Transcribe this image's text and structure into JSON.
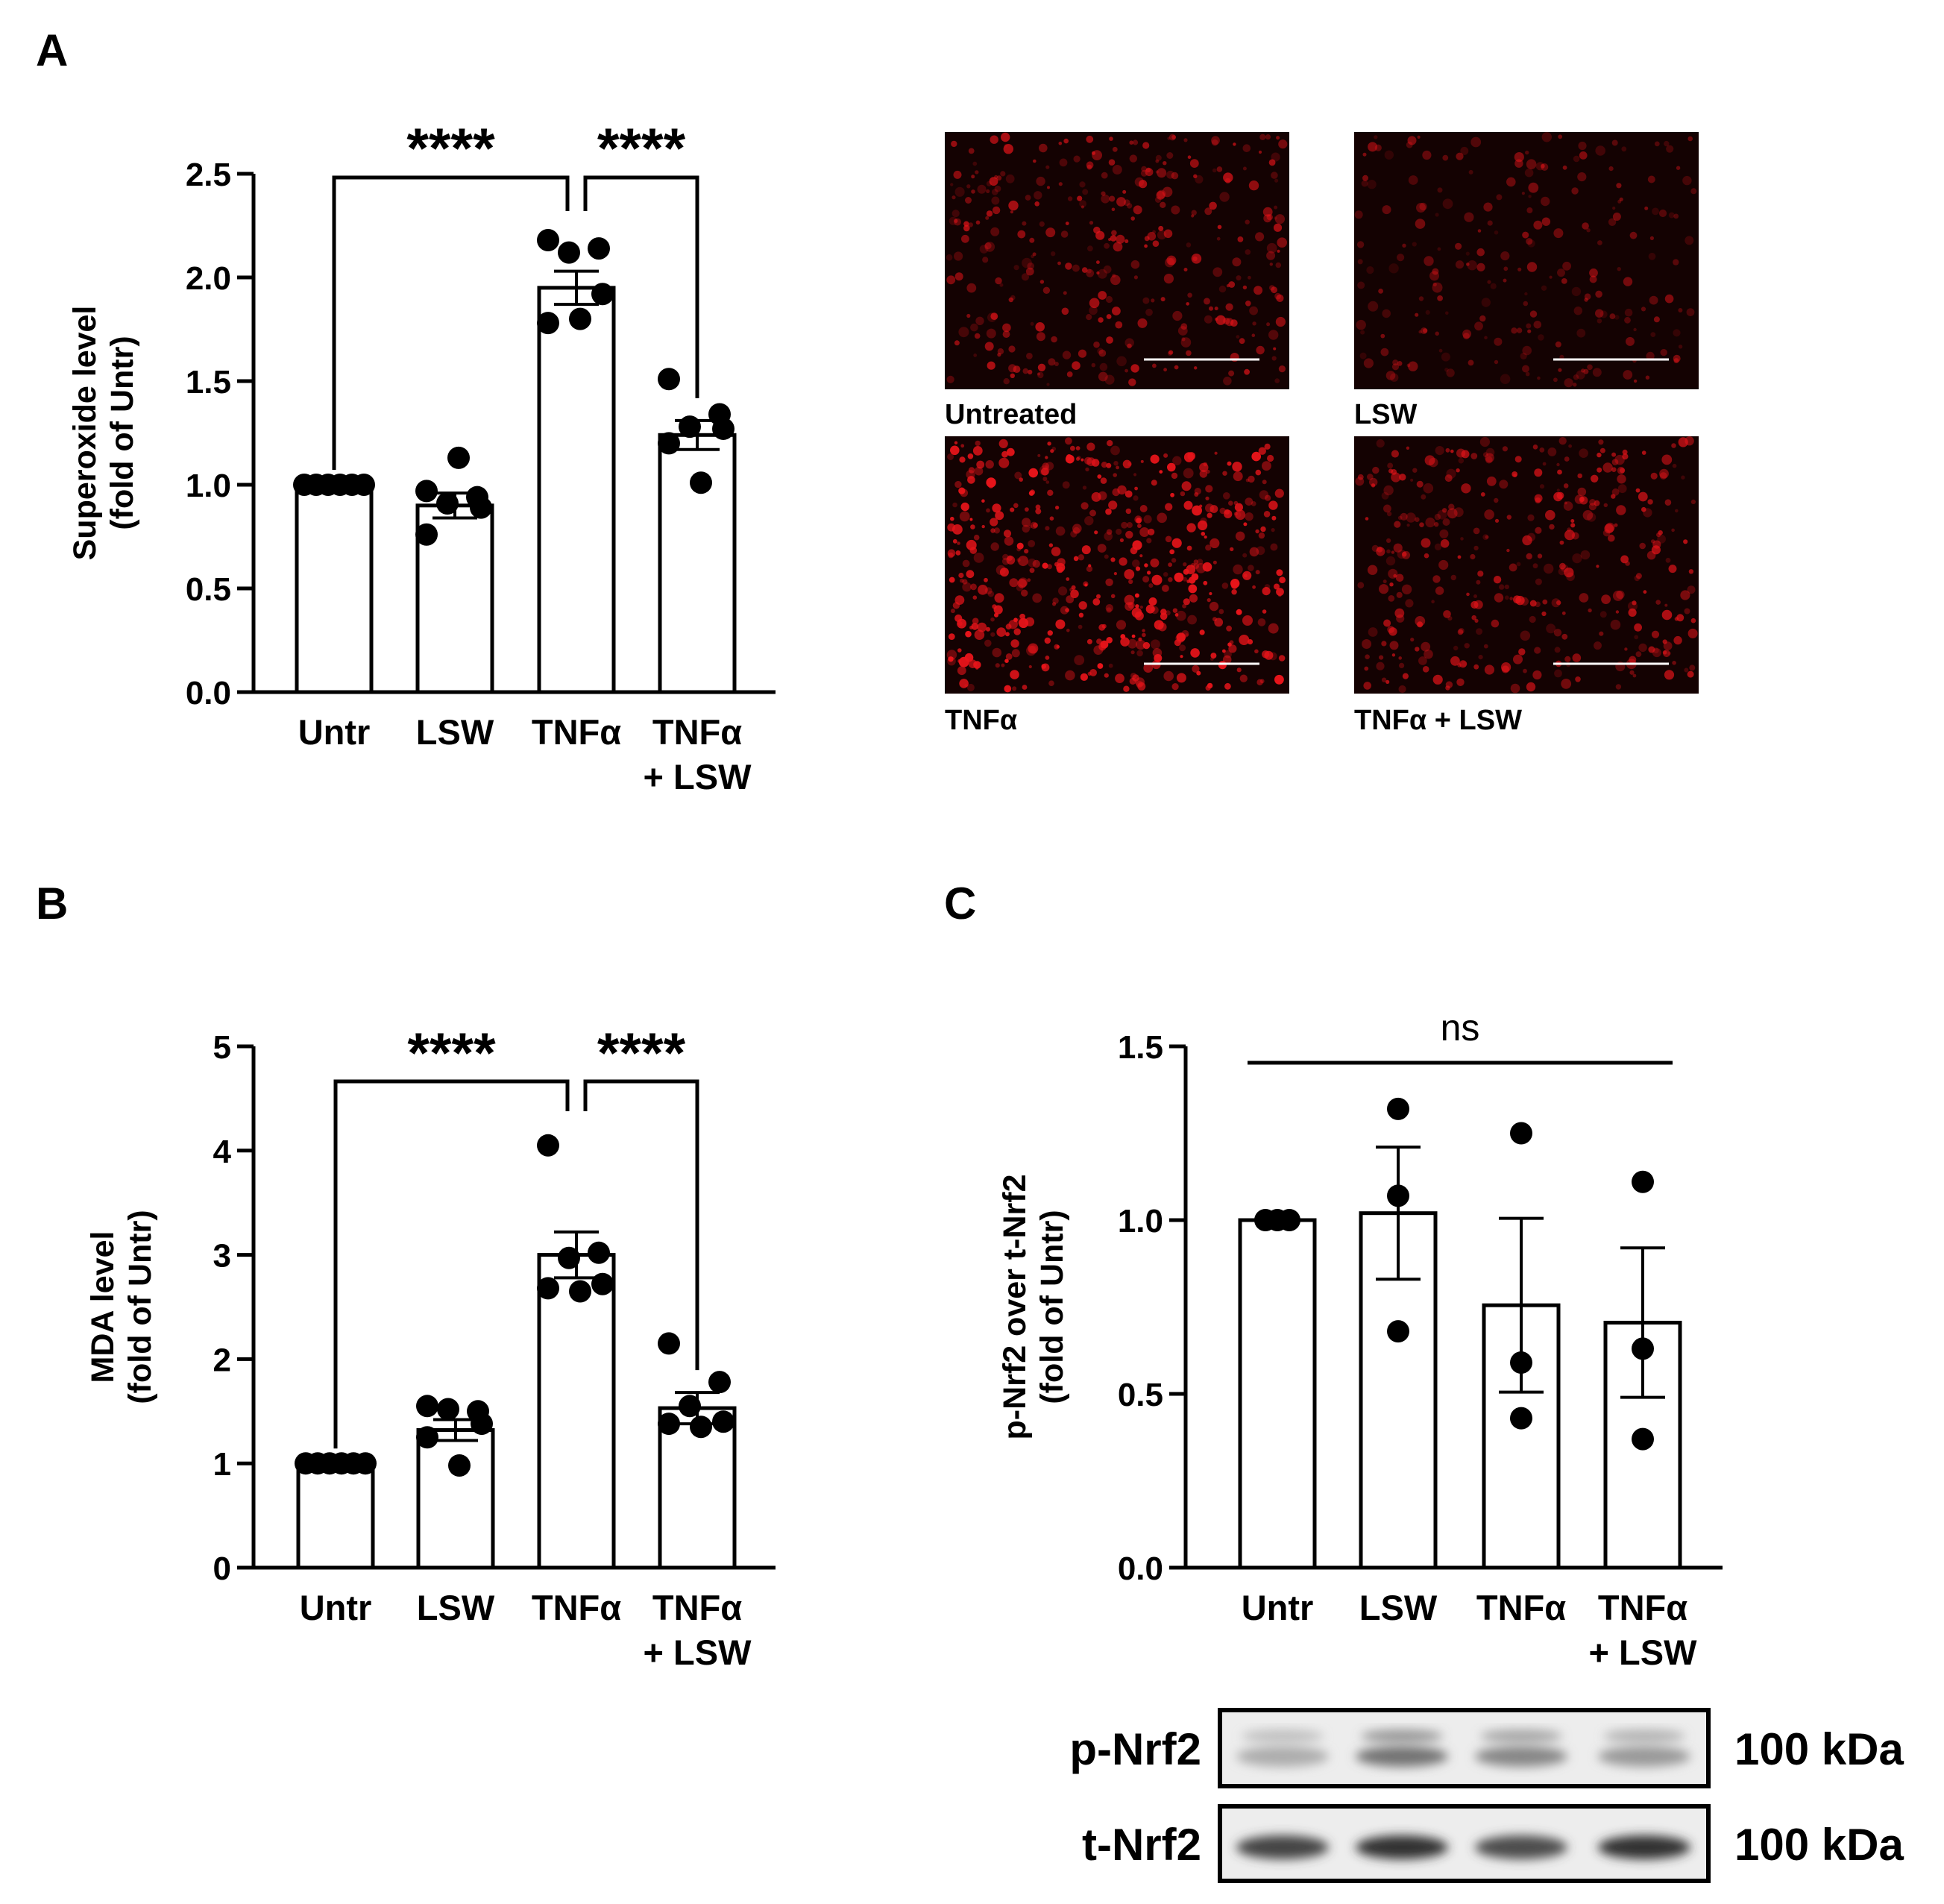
{
  "panels": {
    "a_label": "A",
    "b_label": "B",
    "c_label": "C"
  },
  "colors": {
    "bar_fill": "#ffffff",
    "ink": "#000000",
    "micrograph_red": "#e8141a",
    "micrograph_bg": "#140202"
  },
  "chart_data": [
    {
      "type": "bar",
      "panel": "A",
      "ylabel_line1": "Superoxide level",
      "ylabel_line2": "(fold of Untr)",
      "categories": [
        "Untr",
        "LSW",
        "TNFα",
        "TNFα"
      ],
      "category_second_line": [
        "",
        "",
        "",
        "+ LSW"
      ],
      "ylim": [
        0,
        2.5
      ],
      "yticks": [
        "0.0",
        "0.5",
        "1.0",
        "1.5",
        "2.0",
        "2.5"
      ],
      "ytick_values": [
        0,
        0.5,
        1.0,
        1.5,
        2.0,
        2.5
      ],
      "values": [
        1.0,
        0.9,
        1.95,
        1.24
      ],
      "sem": [
        0.0,
        0.06,
        0.08,
        0.07
      ],
      "points": [
        [
          1.0,
          1.0,
          1.0,
          1.0,
          1.0,
          1.0
        ],
        [
          0.97,
          0.94,
          0.91,
          0.89,
          0.76,
          1.13
        ],
        [
          2.18,
          2.14,
          2.12,
          1.92,
          1.78,
          1.8
        ],
        [
          1.51,
          1.34,
          1.28,
          1.27,
          1.2,
          1.01
        ]
      ],
      "significance": [
        {
          "from": 0,
          "to": 2,
          "label": "****"
        },
        {
          "from": 2,
          "to": 3,
          "label": "****"
        }
      ]
    },
    {
      "type": "bar",
      "panel": "B",
      "ylabel_line1": "MDA level",
      "ylabel_line2": "(fold of Untr)",
      "categories": [
        "Untr",
        "LSW",
        "TNFα",
        "TNFα"
      ],
      "category_second_line": [
        "",
        "",
        "",
        "+ LSW"
      ],
      "ylim": [
        0,
        5
      ],
      "yticks": [
        "0",
        "1",
        "2",
        "3",
        "4",
        "5"
      ],
      "ytick_values": [
        0,
        1,
        2,
        3,
        4,
        5
      ],
      "values": [
        1.0,
        1.32,
        3.0,
        1.53
      ],
      "sem": [
        0.0,
        0.1,
        0.22,
        0.15
      ],
      "points": [
        [
          1.0,
          1.0,
          1.0,
          1.0,
          1.0,
          1.0
        ],
        [
          1.55,
          1.5,
          1.52,
          1.38,
          1.25,
          0.98
        ],
        [
          4.05,
          3.02,
          2.97,
          2.72,
          2.68,
          2.65
        ],
        [
          2.15,
          1.78,
          1.55,
          1.4,
          1.38,
          1.35
        ]
      ],
      "significance": [
        {
          "from": 0,
          "to": 2,
          "label": "****"
        },
        {
          "from": 2,
          "to": 3,
          "label": "****"
        }
      ]
    },
    {
      "type": "bar",
      "panel": "C",
      "ylabel_line1": "p-Nrf2 over t-Nrf2",
      "ylabel_line2": "(fold of Untr)",
      "categories": [
        "Untr",
        "LSW",
        "TNFα",
        "TNFα"
      ],
      "category_second_line": [
        "",
        "",
        "",
        "+ LSW"
      ],
      "ylim": [
        0,
        1.5
      ],
      "yticks": [
        "0.0",
        "0.5",
        "1.0",
        "1.5"
      ],
      "ytick_values": [
        0,
        0.5,
        1.0,
        1.5
      ],
      "values": [
        1.0,
        1.02,
        0.755,
        0.705
      ],
      "sem": [
        0.0,
        0.19,
        0.25,
        0.215
      ],
      "points": [
        [
          1.0,
          1.0,
          1.0
        ],
        [
          1.32,
          1.07,
          0.68
        ],
        [
          1.25,
          0.59,
          0.43
        ],
        [
          1.11,
          0.63,
          0.37
        ]
      ],
      "significance": [
        {
          "from": 0,
          "to": 3,
          "label": "ns"
        }
      ]
    }
  ],
  "micrographs": {
    "labels": [
      "Untreated",
      "LSW",
      "TNFα",
      "TNFα + LSW"
    ],
    "intensity": [
      0.55,
      0.25,
      1.0,
      0.6
    ]
  },
  "western_blot": {
    "rows": [
      {
        "label": "p-Nrf2",
        "size": "100 kDa"
      },
      {
        "label": "t-Nrf2",
        "size": "100 kDa"
      }
    ],
    "p_band_strength": [
      0.25,
      0.55,
      0.45,
      0.35
    ],
    "t_band_strength": [
      0.8,
      0.9,
      0.75,
      0.9
    ]
  }
}
